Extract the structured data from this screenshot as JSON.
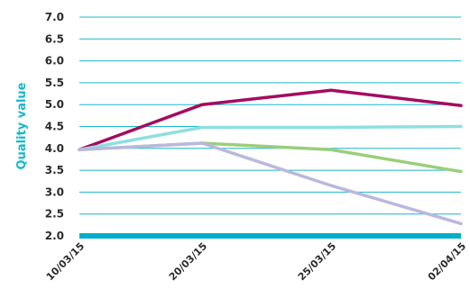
{
  "chart_data": {
    "type": "line",
    "ylabel": "Quality value",
    "ylim": [
      2.0,
      7.0
    ],
    "y_ticks": [
      "2.0",
      "2.5",
      "3.0",
      "3.5",
      "4.0",
      "4.5",
      "5.0",
      "5.5",
      "6.0",
      "6.5",
      "7.0"
    ],
    "categories": [
      "10/03/15",
      "20/03/15",
      "25/03/15",
      "02/04/15"
    ],
    "series": [
      {
        "values": [
          3.97,
          5.0,
          5.33,
          4.98
        ],
        "color": "#a50b5e"
      },
      {
        "values": [
          3.97,
          4.48,
          4.48,
          4.5
        ],
        "color": "#8fdfe0"
      },
      {
        "values": [
          3.97,
          4.12,
          3.97,
          3.47
        ],
        "color": "#9bce7c"
      },
      {
        "values": [
          3.97,
          4.12,
          3.15,
          2.28
        ],
        "color": "#b9b8dd"
      }
    ],
    "colors": {
      "grid": "#19b8c9",
      "axis": "#00aecb",
      "ylabel": "#14b8cc",
      "tick_text": "#2b2b2b"
    },
    "grid": true,
    "legend": "none"
  }
}
